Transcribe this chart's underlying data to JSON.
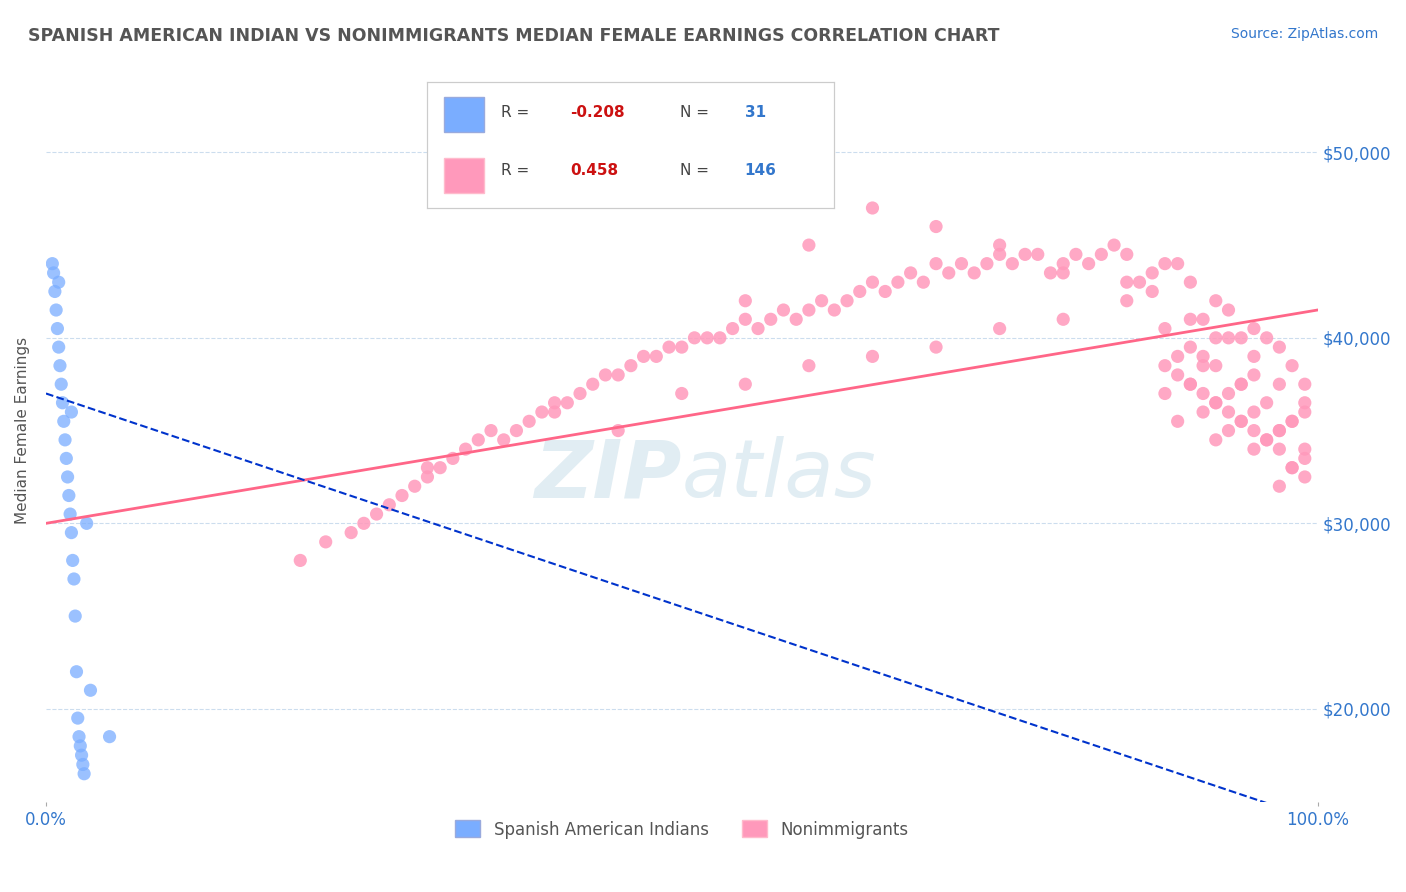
{
  "title": "SPANISH AMERICAN INDIAN VS NONIMMIGRANTS MEDIAN FEMALE EARNINGS CORRELATION CHART",
  "source": "Source: ZipAtlas.com",
  "ylabel": "Median Female Earnings",
  "x_min": 0.0,
  "x_max": 100.0,
  "y_min": 15000,
  "y_max": 55000,
  "yticks": [
    20000,
    30000,
    40000,
    50000
  ],
  "ytick_labels": [
    "$20,000",
    "$30,000",
    "$40,000",
    "$50,000"
  ],
  "xtick_labels": [
    "0.0%",
    "100.0%"
  ],
  "legend_labels": [
    "Spanish American Indians",
    "Nonimmigrants"
  ],
  "R_blue": -0.208,
  "N_blue": 31,
  "R_pink": 0.458,
  "N_pink": 146,
  "blue_color": "#7AADFF",
  "pink_color": "#FF99BB",
  "blue_line_color": "#0033CC",
  "pink_line_color": "#FF6688",
  "title_color": "#555555",
  "axis_label_color": "#555555",
  "tick_color": "#3377CC",
  "watermark_color": "#AACCDD",
  "blue_scatter_x": [
    0.5,
    0.6,
    0.7,
    0.8,
    0.9,
    1.0,
    1.1,
    1.2,
    1.3,
    1.4,
    1.5,
    1.6,
    1.7,
    1.8,
    1.9,
    2.0,
    2.1,
    2.2,
    2.3,
    2.4,
    2.5,
    2.6,
    2.7,
    2.8,
    2.9,
    3.0,
    3.2,
    3.5,
    5.0,
    1.0,
    2.0
  ],
  "blue_scatter_y": [
    44000,
    43500,
    42500,
    41500,
    40500,
    39500,
    38500,
    37500,
    36500,
    35500,
    34500,
    33500,
    32500,
    31500,
    30500,
    29500,
    28000,
    27000,
    25000,
    22000,
    19500,
    18500,
    18000,
    17500,
    17000,
    16500,
    30000,
    21000,
    18500,
    43000,
    36000
  ],
  "pink_scatter_x": [
    20,
    22,
    24,
    25,
    26,
    27,
    28,
    29,
    30,
    31,
    32,
    33,
    34,
    35,
    36,
    37,
    38,
    39,
    40,
    41,
    42,
    43,
    44,
    45,
    46,
    47,
    48,
    49,
    50,
    51,
    52,
    53,
    54,
    55,
    56,
    57,
    58,
    59,
    60,
    61,
    62,
    63,
    64,
    65,
    66,
    67,
    68,
    69,
    70,
    71,
    72,
    73,
    74,
    75,
    76,
    77,
    78,
    79,
    80,
    81,
    82,
    83,
    84,
    85,
    86,
    87,
    88,
    89,
    90,
    91,
    92,
    93,
    94,
    95,
    96,
    97,
    98,
    99,
    55,
    60,
    65,
    70,
    75,
    80,
    85,
    90,
    93,
    95,
    97,
    99,
    40,
    50,
    60,
    70,
    80,
    87,
    92,
    95,
    98,
    30,
    45,
    55,
    65,
    75,
    85,
    91,
    94,
    97,
    88,
    90,
    92,
    94,
    96,
    98,
    99,
    89,
    91,
    93,
    95,
    97,
    99,
    88,
    90,
    92,
    94,
    96,
    98,
    89,
    91,
    93,
    95,
    97,
    99,
    90,
    92,
    94,
    96,
    98,
    88,
    91,
    93,
    95,
    97,
    99,
    89,
    92
  ],
  "pink_scatter_y": [
    28000,
    29000,
    29500,
    30000,
    30500,
    31000,
    31500,
    32000,
    32500,
    33000,
    33500,
    34000,
    34500,
    35000,
    34500,
    35000,
    35500,
    36000,
    36000,
    36500,
    37000,
    37500,
    38000,
    38000,
    38500,
    39000,
    39000,
    39500,
    39500,
    40000,
    40000,
    40000,
    40500,
    41000,
    40500,
    41000,
    41500,
    41000,
    41500,
    42000,
    41500,
    42000,
    42500,
    43000,
    42500,
    43000,
    43500,
    43000,
    44000,
    43500,
    44000,
    43500,
    44000,
    44500,
    44000,
    44500,
    44500,
    43500,
    44000,
    44500,
    44000,
    44500,
    45000,
    44500,
    43000,
    43500,
    44000,
    44000,
    43000,
    41000,
    42000,
    41500,
    40000,
    40500,
    40000,
    39500,
    38500,
    37500,
    42000,
    45000,
    47000,
    46000,
    45000,
    43500,
    43000,
    41000,
    40000,
    39000,
    37500,
    36000,
    36500,
    37000,
    38500,
    39500,
    41000,
    42500,
    40000,
    38000,
    35500,
    33000,
    35000,
    37500,
    39000,
    40500,
    42000,
    39000,
    37500,
    35000,
    40500,
    39500,
    38500,
    37500,
    36500,
    35500,
    34000,
    39000,
    38500,
    37000,
    36000,
    35000,
    33500,
    38500,
    37500,
    36500,
    35500,
    34500,
    33000,
    38000,
    37000,
    36000,
    35000,
    34000,
    32500,
    37500,
    36500,
    35500,
    34500,
    33000,
    37000,
    36000,
    35000,
    34000,
    32000,
    36500,
    35500,
    34500
  ]
}
